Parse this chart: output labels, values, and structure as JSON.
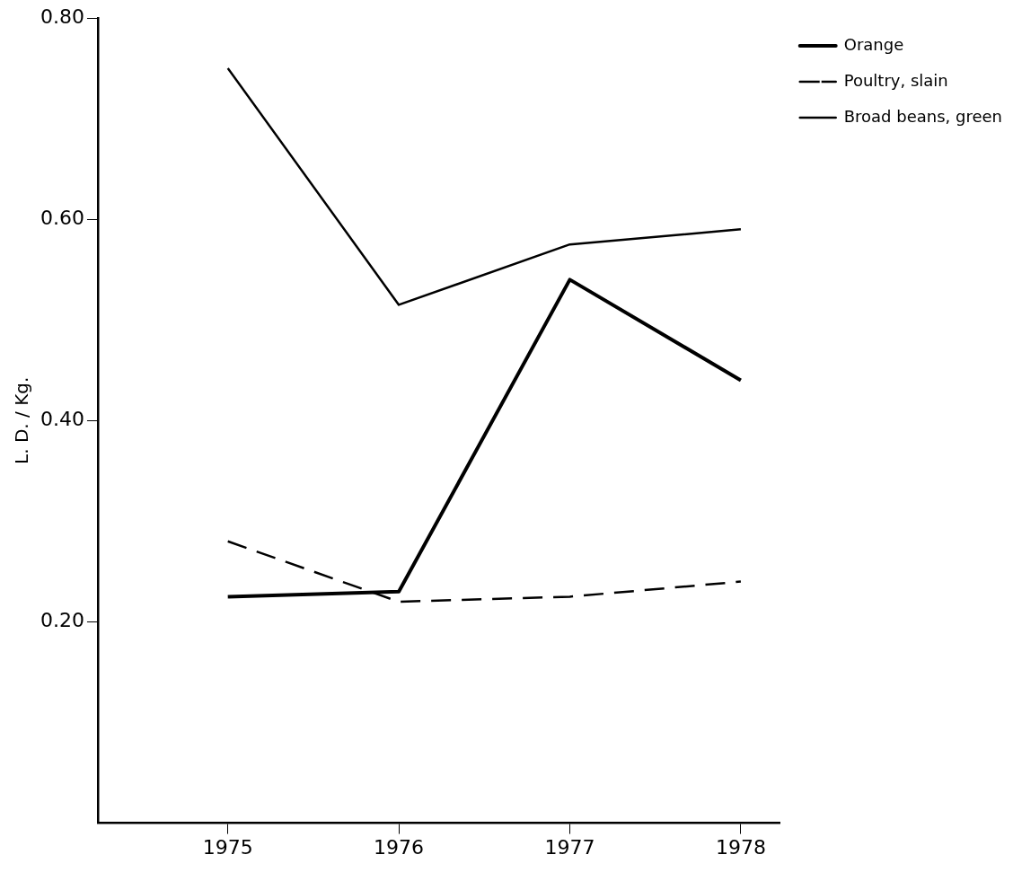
{
  "chart_data": {
    "type": "line",
    "ylabel": "L. D. / Kg.",
    "x": [
      1975,
      1976,
      1977,
      1978
    ],
    "xlim": [
      1974.24,
      1978.23
    ],
    "xticks": [
      1975,
      1976,
      1977,
      1978
    ],
    "ylim": [
      0,
      0.8
    ],
    "yticks": [
      {
        "value": 0.2,
        "label": "0.20"
      },
      {
        "value": 0.4,
        "label": "0.40"
      },
      {
        "value": 0.6,
        "label": "0.60"
      },
      {
        "value": 0.8,
        "label": "0.80"
      }
    ],
    "grid": false,
    "legend": "top right",
    "marker": "none",
    "series": [
      {
        "name": "Orange",
        "color": "#000000",
        "line_style": "solid",
        "values": [
          0.225,
          0.23,
          0.54,
          0.44
        ]
      },
      {
        "name": "Poultry, slain",
        "color": "#000000",
        "line_style": "dashed",
        "values": [
          0.28,
          0.22,
          0.225,
          0.24
        ]
      },
      {
        "name": "Broad beans, green",
        "color": "#000000",
        "line_style": "solid",
        "values": [
          0.75,
          0.515,
          0.575,
          0.59
        ]
      }
    ]
  }
}
